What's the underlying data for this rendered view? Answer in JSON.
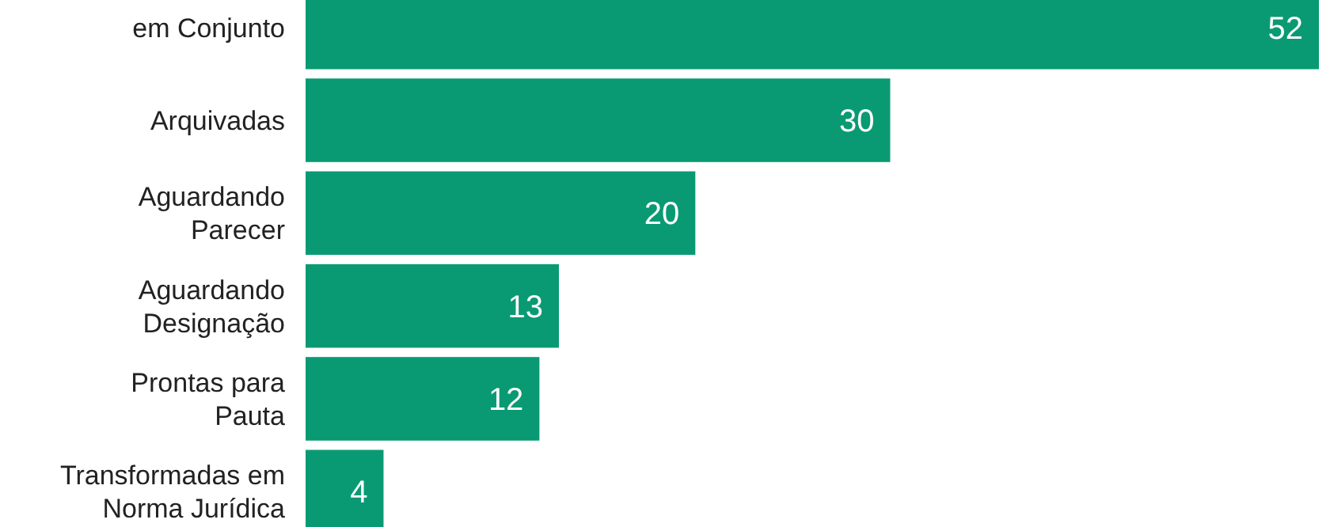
{
  "chart_data": {
    "type": "bar",
    "orientation": "horizontal",
    "categories": [
      "em Conjunto",
      "Arquivadas",
      "Aguardando\nParecer",
      "Aguardando\nDesignação",
      "Prontas para\nPauta",
      "Transformadas em\nNorma Jurídica"
    ],
    "values": [
      52,
      30,
      20,
      13,
      12,
      4
    ],
    "color": "#0a9a73",
    "data_labels": true,
    "grid": false
  }
}
